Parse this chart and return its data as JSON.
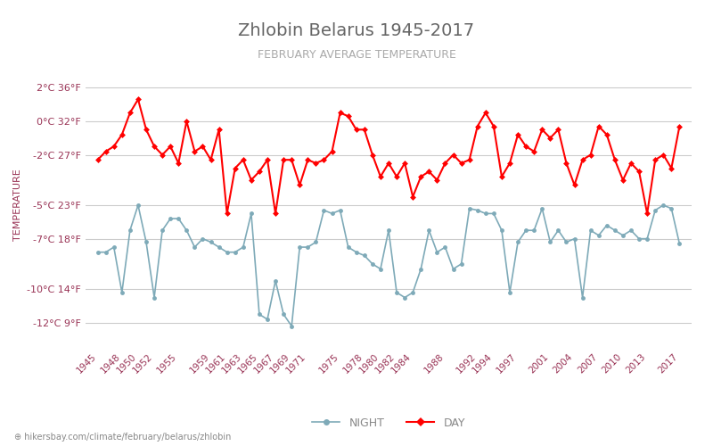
{
  "title": "Zhlobin Belarus 1945-2017",
  "subtitle": "FEBRUARY AVERAGE TEMPERATURE",
  "ylabel": "TEMPERATURE",
  "xlabel_url": "hikersbay.com/climate/february/belarus/zhlobin",
  "yticks_celsius": [
    2,
    0,
    -2,
    -5,
    -7,
    -10,
    -12
  ],
  "yticks_fahrenheit": [
    36,
    32,
    27,
    23,
    18,
    14,
    9
  ],
  "ylim": [
    -13.5,
    3.5
  ],
  "years": [
    1945,
    1946,
    1947,
    1948,
    1949,
    1950,
    1951,
    1952,
    1953,
    1954,
    1955,
    1956,
    1957,
    1958,
    1959,
    1960,
    1961,
    1962,
    1963,
    1964,
    1965,
    1966,
    1967,
    1968,
    1969,
    1970,
    1971,
    1972,
    1973,
    1974,
    1975,
    1976,
    1977,
    1978,
    1979,
    1980,
    1981,
    1982,
    1983,
    1984,
    1985,
    1986,
    1987,
    1988,
    1989,
    1990,
    1991,
    1992,
    1993,
    1994,
    1995,
    1996,
    1997,
    1998,
    1999,
    2000,
    2001,
    2002,
    2003,
    2004,
    2005,
    2006,
    2007,
    2008,
    2009,
    2010,
    2011,
    2012,
    2013,
    2014,
    2015,
    2016,
    2017
  ],
  "day_temps": [
    -2.3,
    -1.8,
    -1.5,
    -0.8,
    0.5,
    1.3,
    -0.5,
    -1.5,
    -2.0,
    -1.5,
    -2.5,
    0.0,
    -1.8,
    -1.5,
    -2.3,
    -0.5,
    -5.5,
    -2.8,
    -2.3,
    -3.5,
    -3.0,
    -2.3,
    -5.5,
    -2.3,
    -2.3,
    -3.8,
    -2.3,
    -2.5,
    -2.3,
    -1.8,
    0.5,
    0.3,
    -0.5,
    -0.5,
    -2.0,
    -3.3,
    -2.5,
    -3.3,
    -2.5,
    -4.5,
    -3.3,
    -3.0,
    -3.5,
    -2.5,
    -2.0,
    -2.5,
    -2.3,
    -0.3,
    0.5,
    -0.3,
    -3.3,
    -2.5,
    -0.8,
    -1.5,
    -1.8,
    -0.5,
    -1.0,
    -0.5,
    -2.5,
    -3.8,
    -2.3,
    -2.0,
    -0.3,
    -0.8,
    -2.3,
    -3.5,
    -2.5,
    -3.0,
    -5.5,
    -2.3,
    -2.0,
    -2.8,
    -0.3
  ],
  "night_temps": [
    -7.8,
    -7.8,
    -7.5,
    -10.2,
    -6.5,
    -5.0,
    -7.2,
    -10.5,
    -6.5,
    -5.8,
    -5.8,
    -6.5,
    -7.5,
    -7.0,
    -7.2,
    -7.5,
    -7.8,
    -7.8,
    -7.5,
    -5.5,
    -11.5,
    -11.8,
    -9.5,
    -11.5,
    -12.2,
    -7.5,
    -7.5,
    -7.2,
    -5.3,
    -5.5,
    -5.3,
    -7.5,
    -7.8,
    -8.0,
    -8.5,
    -8.8,
    -6.5,
    -10.2,
    -10.5,
    -10.2,
    -8.8,
    -6.5,
    -7.8,
    -7.5,
    -8.8,
    -8.5,
    -5.2,
    -5.3,
    -5.5,
    -5.5,
    -6.5,
    -10.2,
    -7.2,
    -6.5,
    -6.5,
    -5.2,
    -7.2,
    -6.5,
    -7.2,
    -7.0,
    -10.5,
    -6.5,
    -6.8,
    -6.2,
    -6.5,
    -6.8,
    -6.5,
    -7.0,
    -7.0,
    -5.3,
    -5.0,
    -5.2,
    -7.3
  ],
  "day_color": "#ff0000",
  "night_color": "#7eaab8",
  "bg_color": "#ffffff",
  "grid_color": "#cccccc",
  "tick_color": "#993355",
  "xtick_years": [
    1945,
    1948,
    1950,
    1952,
    1955,
    1959,
    1961,
    1963,
    1965,
    1967,
    1969,
    1971,
    1975,
    1978,
    1980,
    1982,
    1984,
    1988,
    1992,
    1994,
    1997,
    2001,
    2004,
    2007,
    2010,
    2013,
    2017
  ]
}
